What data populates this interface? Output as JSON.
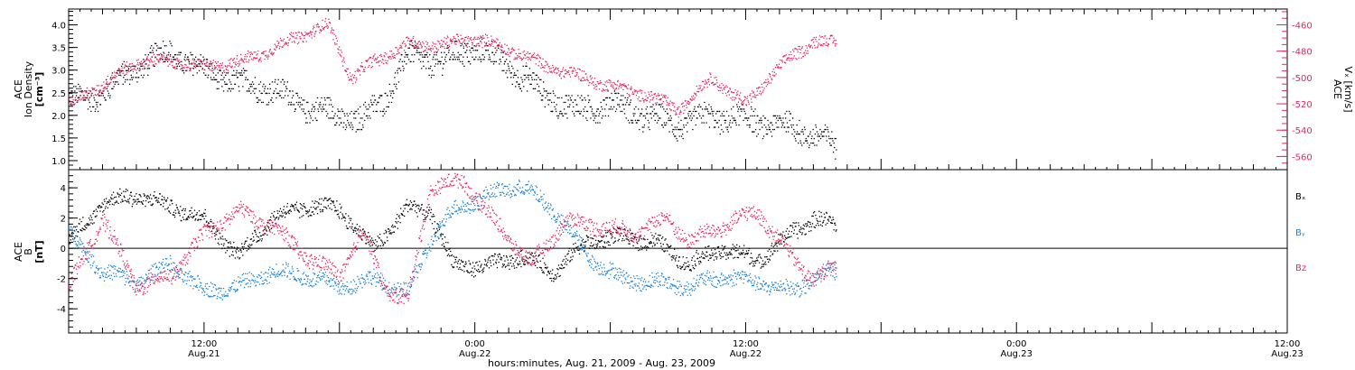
{
  "chart_data": [
    {
      "type": "scatter",
      "panel": "ion-density-and-velocity",
      "y_left": {
        "label_lines": [
          "ACE",
          "Ion Density"
        ],
        "unit": "[cm⁻³]",
        "ylim": [
          0.8,
          4.35
        ],
        "ticks": [
          1.0,
          1.5,
          2.0,
          2.5,
          3.0,
          3.5,
          4.0
        ],
        "tick_labels": [
          "1.0",
          "1.5",
          "2.0",
          "2.5",
          "3.0",
          "3.5",
          "4.0"
        ]
      },
      "y_right": {
        "label_lines": [
          "ACE",
          "Vₓ [km/s]"
        ],
        "ylim": [
          -570,
          -448
        ],
        "ticks": [
          -560,
          -540,
          -520,
          -500,
          -480,
          -460
        ],
        "tick_labels": [
          "-560",
          "-540",
          "-520",
          "-500",
          "-480",
          "-460"
        ],
        "color": "#e8275b"
      },
      "series": [
        {
          "color": "#000000",
          "axis": "left",
          "keypoints": [
            [
              0,
              2.3
            ],
            [
              3,
              2.5
            ],
            [
              6,
              3.1
            ],
            [
              9,
              3.4
            ],
            [
              12,
              3.0
            ],
            [
              15,
              2.7
            ],
            [
              18,
              2.6
            ],
            [
              21,
              2.2
            ],
            [
              24,
              2.0
            ],
            [
              26,
              1.9
            ],
            [
              28,
              2.4
            ],
            [
              30,
              3.3
            ],
            [
              33,
              3.2
            ],
            [
              36,
              3.5
            ],
            [
              39,
              3.1
            ],
            [
              42,
              2.5
            ],
            [
              45,
              2.1
            ],
            [
              48,
              2.3
            ],
            [
              51,
              2.0
            ],
            [
              54,
              1.8
            ],
            [
              57,
              2.0
            ],
            [
              60,
              1.9
            ],
            [
              63,
              1.8
            ],
            [
              66,
              1.6
            ],
            [
              68,
              1.3
            ]
          ]
        },
        {
          "color": "#e8275b",
          "axis": "right",
          "keypoints": [
            [
              0,
              -520
            ],
            [
              3,
              -505
            ],
            [
              6,
              -488
            ],
            [
              9,
              -487
            ],
            [
              12,
              -492
            ],
            [
              15,
              -488
            ],
            [
              18,
              -478
            ],
            [
              21,
              -466
            ],
            [
              23,
              -460
            ],
            [
              25,
              -500
            ],
            [
              27,
              -488
            ],
            [
              30,
              -474
            ],
            [
              33,
              -475
            ],
            [
              36,
              -470
            ],
            [
              39,
              -478
            ],
            [
              42,
              -490
            ],
            [
              45,
              -498
            ],
            [
              48,
              -506
            ],
            [
              51,
              -512
            ],
            [
              54,
              -524
            ],
            [
              57,
              -500
            ],
            [
              60,
              -520
            ],
            [
              62,
              -500
            ],
            [
              64,
              -484
            ],
            [
              66,
              -472
            ],
            [
              68,
              -474
            ]
          ]
        }
      ]
    },
    {
      "type": "scatter",
      "panel": "magnetic-field-components",
      "y_left": {
        "label_lines": [
          "ACE",
          "B",
          "[nT]"
        ],
        "ylim": [
          -5.6,
          5.2
        ],
        "ticks": [
          -4,
          -2,
          0,
          2,
          4
        ],
        "tick_labels": [
          "-4",
          "-2",
          "0",
          "2",
          "4"
        ]
      },
      "series": [
        {
          "name": "Bₓ",
          "color": "#000000",
          "keypoints": [
            [
              0,
              0.5
            ],
            [
              3,
              3.0
            ],
            [
              6,
              3.5
            ],
            [
              9,
              2.8
            ],
            [
              12,
              2.0
            ],
            [
              15,
              -0.5
            ],
            [
              18,
              2.0
            ],
            [
              21,
              2.8
            ],
            [
              24,
              2.6
            ],
            [
              27,
              0.0
            ],
            [
              30,
              2.7
            ],
            [
              32,
              2.5
            ],
            [
              34,
              -1.0
            ],
            [
              37,
              -1.2
            ],
            [
              40,
              -0.5
            ],
            [
              43,
              -1.5
            ],
            [
              46,
              0.5
            ],
            [
              49,
              0.8
            ],
            [
              52,
              0.4
            ],
            [
              55,
              -1.0
            ],
            [
              58,
              0.0
            ],
            [
              61,
              -0.8
            ],
            [
              64,
              1.0
            ],
            [
              66,
              2.0
            ],
            [
              68,
              1.5
            ]
          ]
        },
        {
          "name": "Bᵧ",
          "color": "#1a82d6",
          "keypoints": [
            [
              0,
              1.0
            ],
            [
              3,
              -1.5
            ],
            [
              6,
              -2.2
            ],
            [
              9,
              -1.0
            ],
            [
              12,
              -2.8
            ],
            [
              15,
              -2.5
            ],
            [
              18,
              -1.5
            ],
            [
              21,
              -1.8
            ],
            [
              24,
              -2.5
            ],
            [
              27,
              -2.0
            ],
            [
              30,
              -3.0
            ],
            [
              32,
              0.5
            ],
            [
              34,
              2.5
            ],
            [
              37,
              3.5
            ],
            [
              40,
              4.2
            ],
            [
              43,
              2.5
            ],
            [
              46,
              -0.5
            ],
            [
              49,
              -2.0
            ],
            [
              52,
              -2.2
            ],
            [
              55,
              -2.5
            ],
            [
              58,
              -1.8
            ],
            [
              61,
              -2.2
            ],
            [
              64,
              -2.8
            ],
            [
              66,
              -2.0
            ],
            [
              68,
              -1.5
            ]
          ]
        },
        {
          "name": "Bz",
          "color": "#e8275b",
          "keypoints": [
            [
              0,
              -2.5
            ],
            [
              3,
              2.0
            ],
            [
              6,
              -2.5
            ],
            [
              9,
              -1.8
            ],
            [
              12,
              1.0
            ],
            [
              15,
              2.5
            ],
            [
              18,
              1.5
            ],
            [
              21,
              -0.5
            ],
            [
              24,
              -1.8
            ],
            [
              26,
              1.2
            ],
            [
              28,
              -2.5
            ],
            [
              30,
              -3.5
            ],
            [
              32,
              4.0
            ],
            [
              35,
              4.5
            ],
            [
              38,
              1.5
            ],
            [
              41,
              -1.0
            ],
            [
              44,
              1.8
            ],
            [
              47,
              1.5
            ],
            [
              50,
              1.0
            ],
            [
              53,
              2.0
            ],
            [
              55,
              0.5
            ],
            [
              58,
              1.5
            ],
            [
              61,
              2.5
            ],
            [
              64,
              -0.5
            ],
            [
              66,
              -2.0
            ],
            [
              68,
              -1.2
            ]
          ]
        }
      ]
    }
  ],
  "x_axis": {
    "xlim": [
      0,
      108
    ],
    "major_ticks": [
      {
        "x": 12,
        "time": "12:00",
        "date": "Aug.21"
      },
      {
        "x": 36,
        "time": "0:00",
        "date": "Aug.22"
      },
      {
        "x": 60,
        "time": "12:00",
        "date": "Aug.22"
      },
      {
        "x": 84,
        "time": "0:00",
        "date": "Aug.23"
      },
      {
        "x": 108,
        "time": "12:00",
        "date": "Aug.23"
      }
    ],
    "title": "hours:minutes, Aug. 21, 2009 - Aug. 23, 2009"
  }
}
